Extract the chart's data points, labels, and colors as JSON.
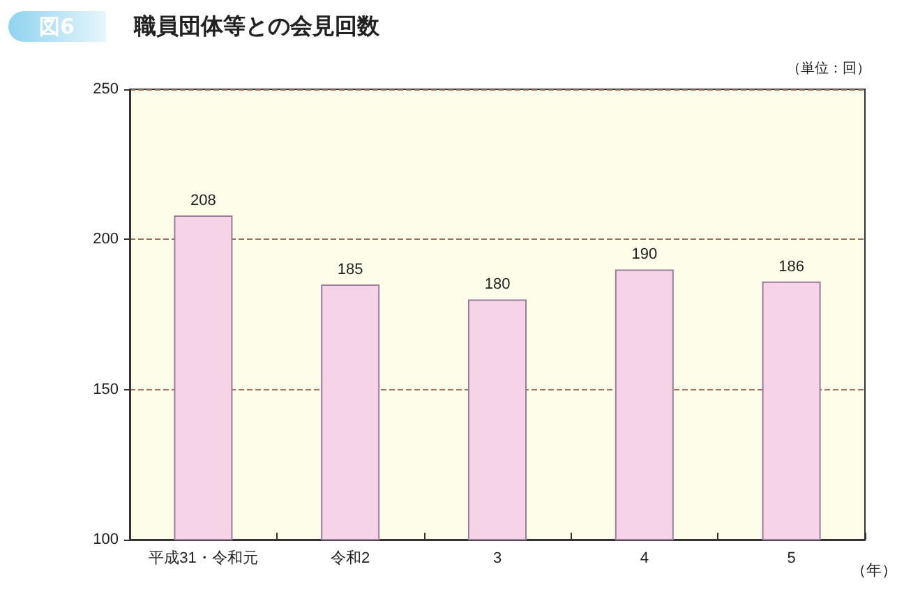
{
  "chart_data": {
    "type": "bar",
    "title": "職員団体等との会見回数",
    "annotations": [
      "図6",
      "（単位：回）"
    ],
    "xlabel": "（年）",
    "categories": [
      "平成31・令和元",
      "令和2",
      "3",
      "4",
      "5"
    ],
    "values": [
      208,
      185,
      180,
      190,
      186
    ],
    "color": "#f6d3e6",
    "ylim": [
      100,
      250
    ],
    "yticks": [
      100,
      150,
      200,
      250
    ],
    "grid": "y",
    "line_style": "dashed",
    "data_labels": true
  }
}
